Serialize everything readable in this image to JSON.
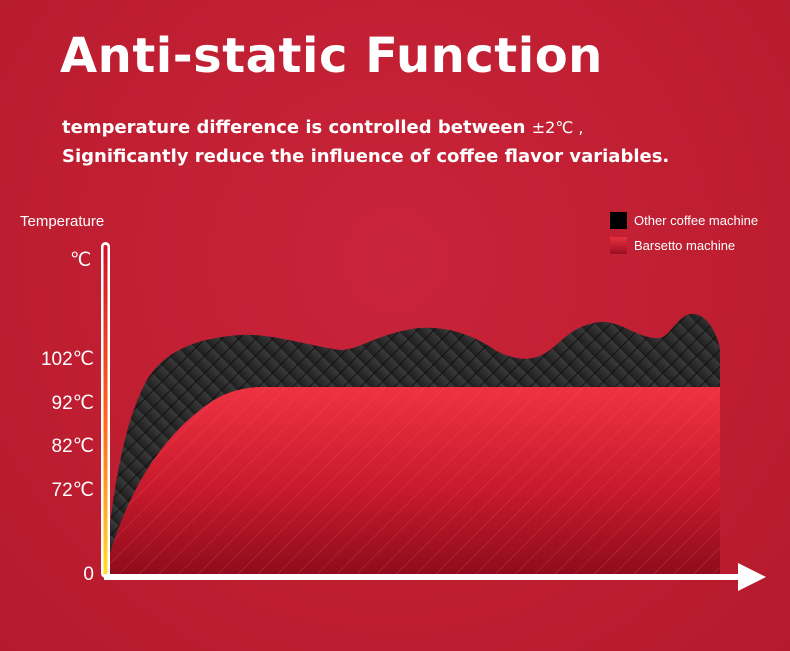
{
  "title": "Anti-static Function",
  "subtitle_line1": {
    "text": "temperature difference is controlled between",
    "range": "±2℃ ,"
  },
  "subtitle_line2": "Significantly reduce the influence of coffee flavor variables.",
  "chart_data": {
    "type": "area",
    "ylabel": "Temperature",
    "y_unit": "℃",
    "y_ticks": [
      "102℃",
      "92℃",
      "82℃",
      "72℃",
      "0"
    ],
    "legend": [
      {
        "name": "Other coffee machine",
        "color": "#000000"
      },
      {
        "name": "Barsetto machine",
        "color": "#e32a3a"
      }
    ],
    "legend_position": "top-right",
    "grid": false
  }
}
